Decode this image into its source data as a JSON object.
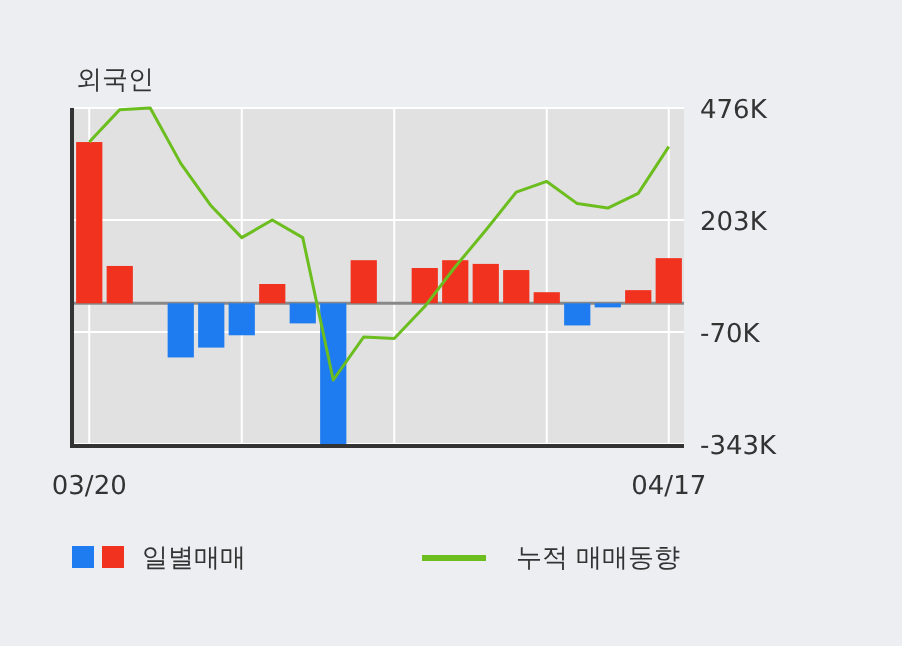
{
  "chart_data": {
    "type": "bar",
    "title": "외국인",
    "categories": [
      "03/20",
      null,
      null,
      null,
      null,
      null,
      null,
      null,
      null,
      null,
      null,
      null,
      null,
      null,
      null,
      null,
      null,
      null,
      null,
      "04/17"
    ],
    "series": [
      {
        "name": "일별매매",
        "colors": [
          "#f0321e",
          "#f0321e",
          "#f0321e",
          "#1e7cf0",
          "#1e7cf0",
          "#1e7cf0",
          "#f0321e",
          "#1e7cf0",
          "#1e7cf0",
          "#f0321e",
          "#f0321e",
          "#f0321e",
          "#f0321e",
          "#f0321e",
          "#f0321e",
          "#f0321e",
          "#1e7cf0",
          "#1e7cf0",
          "#f0321e",
          "#f0321e"
        ],
        "values": [
          393,
          91,
          0,
          -132,
          -108,
          -78,
          47,
          -49,
          -343,
          105,
          0,
          86,
          105,
          96,
          81,
          27,
          -54,
          -10,
          32,
          110
        ]
      },
      {
        "name": "누적 매매동향",
        "type": "line",
        "color": "#6cbe1f",
        "values": [
          393,
          472,
          476,
          341,
          237,
          160,
          203,
          160,
          -187,
          -82,
          -86,
          -8,
          89,
          178,
          271,
          297,
          243,
          232,
          268,
          382
        ]
      }
    ],
    "ylim": [
      -343,
      476
    ],
    "yticks": [
      {
        "value": 476,
        "label": "476K"
      },
      {
        "value": 203,
        "label": "203K"
      },
      {
        "value": -70,
        "label": "-70K"
      },
      {
        "value": -343,
        "label": "-343K"
      }
    ],
    "grid": true,
    "legend": "bottom"
  }
}
